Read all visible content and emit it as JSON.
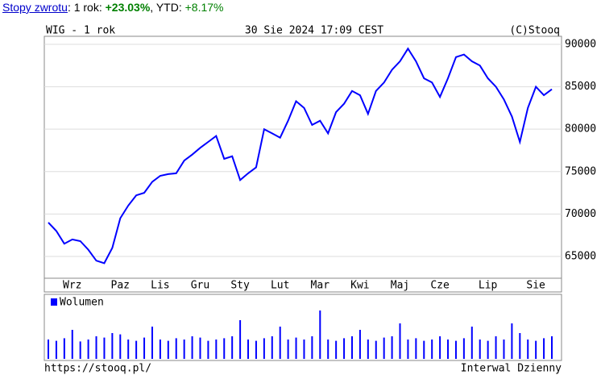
{
  "header": {
    "link": "Stopy zwrotu",
    "label_1y": ": 1 rok: ",
    "return_1y": "+23.03%",
    "label_ytd": ", YTD: ",
    "return_ytd": "+8.17%"
  },
  "chart_data": [
    {
      "type": "line",
      "title": "WIG - 1 rok",
      "subtitle": "30 Sie 2024 17:09 CEST",
      "credit": "(C)Stooq",
      "categories": [
        null,
        null,
        null,
        "Wrz",
        null,
        null,
        null,
        null,
        null,
        "Paz",
        null,
        null,
        null,
        null,
        "Lis",
        null,
        null,
        null,
        null,
        "Gru",
        null,
        null,
        null,
        null,
        "Sty",
        null,
        null,
        null,
        null,
        "Lut",
        null,
        null,
        null,
        null,
        "Mar",
        null,
        null,
        null,
        null,
        "Kwi",
        null,
        null,
        null,
        null,
        "Maj",
        null,
        null,
        null,
        null,
        "Cze",
        null,
        null,
        null,
        null,
        null,
        "Lip",
        null,
        null,
        null,
        null,
        null,
        "Sie",
        null,
        null
      ],
      "series": [
        {
          "color": "#0000ff",
          "values": [
            69000,
            68000,
            66500,
            67000,
            66800,
            65800,
            64500,
            64200,
            66000,
            69500,
            71000,
            72200,
            72500,
            73800,
            74500,
            74700,
            74800,
            76300,
            77000,
            77800,
            78500,
            79200,
            76500,
            76800,
            74000,
            74800,
            75500,
            80000,
            79500,
            79000,
            81000,
            83300,
            82500,
            80500,
            81000,
            79500,
            82000,
            83000,
            84500,
            84000,
            81800,
            84500,
            85500,
            87000,
            88000,
            89500,
            88000,
            86000,
            85500,
            83800,
            86000,
            88500,
            88800,
            88000,
            87500,
            86000,
            85000,
            83500,
            81500,
            78500,
            82500,
            85000,
            84000,
            84700
          ]
        }
      ],
      "ylim": [
        62430,
        90950
      ],
      "yticks": [
        65000,
        70000,
        75000,
        80000,
        85000,
        90000
      ],
      "grid": true
    },
    {
      "type": "bar",
      "series": [
        {
          "name": "Wolumen",
          "color": "#0000ff",
          "values": [
            30,
            28,
            32,
            45,
            27,
            30,
            35,
            33,
            40,
            38,
            30,
            28,
            33,
            50,
            30,
            28,
            32,
            30,
            35,
            33,
            28,
            30,
            32,
            35,
            60,
            30,
            28,
            32,
            35,
            50,
            30,
            33,
            30,
            35,
            75,
            30,
            28,
            32,
            35,
            45,
            30,
            28,
            33,
            35,
            55,
            30,
            32,
            28,
            30,
            35,
            30,
            28,
            32,
            50,
            30,
            28,
            35,
            30,
            55,
            40,
            30,
            28,
            32,
            35
          ]
        }
      ],
      "ylim": [
        0,
        100
      ]
    }
  ],
  "footer": {
    "left": "https://stooq.pl/",
    "right": "Interwal Dzienny"
  }
}
